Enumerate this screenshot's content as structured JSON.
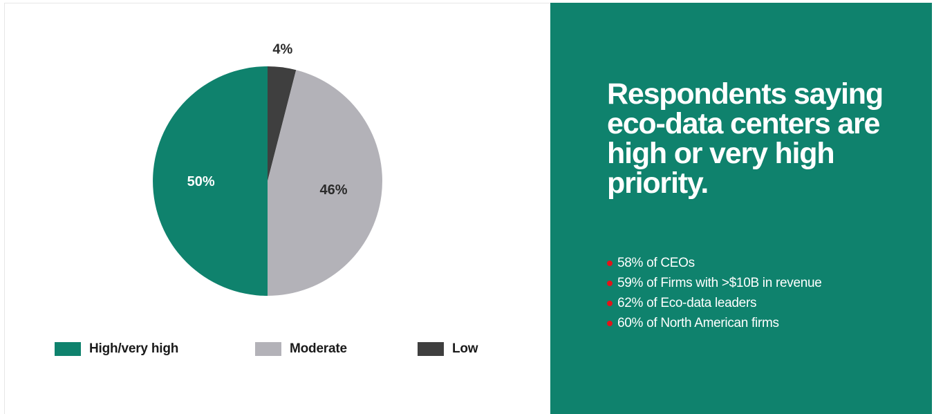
{
  "chart_data": {
    "type": "pie",
    "slices": [
      {
        "label": "Low",
        "value": 4,
        "display": "4%",
        "color": "#3f3f3f"
      },
      {
        "label": "Moderate",
        "value": 46,
        "display": "46%",
        "color": "#b3b2b8"
      },
      {
        "label": "High/very high",
        "value": 50,
        "display": "50%",
        "color": "#0f826d"
      }
    ],
    "start": "12 o'clock",
    "direction": "clockwise",
    "legend_position": "bottom",
    "legend": [
      {
        "label": "High/very high",
        "color": "#0f826d"
      },
      {
        "label": "Moderate",
        "color": "#b3b2b8"
      },
      {
        "label": "Low",
        "color": "#3f3f3f"
      }
    ]
  },
  "panel": {
    "heading": "Respondents saying eco-data centers are high or very high priority.",
    "background": "#0f826d",
    "bullet_color": "#e0151a",
    "items": [
      "58% of CEOs",
      "59% of Firms with >$10B in revenue",
      "62% of Eco-data leaders",
      "60% of North American firms"
    ]
  }
}
